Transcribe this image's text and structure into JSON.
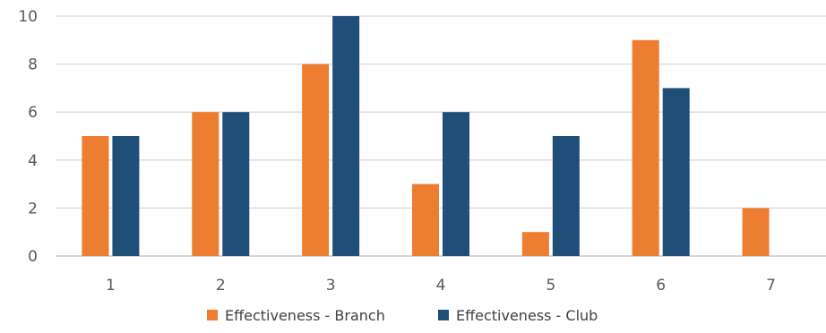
{
  "chart_data": {
    "type": "bar",
    "categories": [
      "1",
      "2",
      "3",
      "4",
      "5",
      "6",
      "7"
    ],
    "series": [
      {
        "name": "Effectiveness - Branch",
        "color": "#ed7d31",
        "values": [
          5,
          6,
          8,
          3,
          1,
          9,
          2
        ]
      },
      {
        "name": "Effectiveness - Club",
        "color": "#1f4e79",
        "values": [
          5,
          6,
          10,
          6,
          5,
          7,
          0
        ]
      }
    ],
    "yticks": [
      "0",
      "2",
      "4",
      "6",
      "8",
      "10"
    ],
    "ylim": [
      0,
      10
    ],
    "grid": true,
    "legend_position": "bottom",
    "title": "",
    "xlabel": "",
    "ylabel": ""
  }
}
